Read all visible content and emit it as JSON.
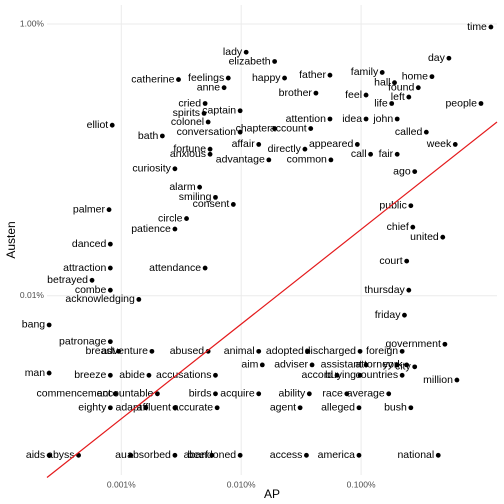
{
  "chart_data": {
    "type": "scatter",
    "x_label": "AP",
    "y_label": "Austen",
    "log_x": true,
    "log_y": true,
    "grid": true,
    "color": "#000000",
    "xlim": [
      0.00024,
      1.36
    ],
    "ylim": [
      0.00048,
      1.38
    ],
    "xticks": [
      {
        "value": 0.001,
        "label": "0.001%"
      },
      {
        "value": 0.01,
        "label": "0.010%"
      },
      {
        "value": 0.1,
        "label": "0.100%"
      }
    ],
    "yticks": [
      {
        "value": 0.01,
        "label": "0.01%"
      },
      {
        "value": 1,
        "label": "1.00%"
      }
    ],
    "trend_line": {
      "color": "#e41a1c",
      "x": [
        0.00024,
        1.36
      ],
      "y": [
        0.00046,
        0.19
      ]
    },
    "labels": [
      "lady",
      "elizabeth",
      "catherine",
      "feelings",
      "happy",
      "father",
      "family",
      "hall",
      "home",
      "day",
      "time",
      "anne",
      "brother",
      "feel",
      "found",
      "left",
      "cried",
      "spirits",
      "colonel",
      "captain",
      "life",
      "people",
      "elliot",
      "attention",
      "idea",
      "john",
      "bath",
      "chapter",
      "account",
      "called",
      "conversation",
      "fortune",
      "affair",
      "directly",
      "appeared",
      "week",
      "anxious",
      "advantage",
      "common",
      "call",
      "fair",
      "curiosity",
      "ago",
      "alarm",
      "smiling",
      "consent",
      "circle",
      "palmer",
      "patience",
      "public",
      "chief",
      "united",
      "danced",
      "attraction",
      "attendance",
      "betrayed",
      "combe",
      "court",
      "thursday",
      "acknowledging",
      "friday",
      "bang",
      "government",
      "patronage",
      "breast",
      "adventure",
      "abused",
      "animal",
      "adopted",
      "discharged",
      "foreign",
      "aim",
      "adviser",
      "assistant",
      "attorney",
      "york",
      "man",
      "breeze",
      "abide",
      "accusations",
      "accord",
      "buying",
      "countries",
      "city",
      "commencement",
      "accountable",
      "birds",
      "acquire",
      "ability",
      "race",
      "average",
      "million",
      "eighty",
      "adapt",
      "affluent",
      "accurate",
      "agent",
      "alleged",
      "bush",
      "aids",
      "abyss",
      "au",
      "absorbed",
      "beef",
      "abandoned",
      "access",
      "america",
      "national"
    ],
    "x": [
      0.011,
      0.019,
      0.003,
      0.0078,
      0.023,
      0.055,
      0.15,
      0.19,
      0.39,
      0.54,
      1.21,
      0.0072,
      0.042,
      0.11,
      0.3,
      0.25,
      0.005,
      0.0049,
      0.0053,
      0.0098,
      0.18,
      1.0,
      0.00084,
      0.055,
      0.11,
      0.2,
      0.0022,
      0.019,
      0.038,
      0.35,
      0.0098,
      0.0055,
      0.014,
      0.034,
      0.093,
      0.61,
      0.0055,
      0.017,
      0.056,
      0.12,
      0.2,
      0.0028,
      0.28,
      0.0045,
      0.0061,
      0.0086,
      0.0035,
      0.00079,
      0.0028,
      0.26,
      0.27,
      0.48,
      0.00081,
      0.00081,
      0.005,
      0.00057,
      0.00081,
      0.24,
      0.25,
      0.0014,
      0.23,
      0.00025,
      0.5,
      0.00081,
      0.00095,
      0.0018,
      0.0053,
      0.014,
      0.036,
      0.098,
      0.22,
      0.015,
      0.039,
      0.11,
      0.2,
      0.24,
      0.00025,
      0.00081,
      0.0017,
      0.0061,
      0.063,
      0.098,
      0.22,
      0.28,
      0.00089,
      0.002,
      0.0061,
      0.014,
      0.037,
      0.076,
      0.17,
      0.63,
      0.00081,
      0.0016,
      0.0028,
      0.0063,
      0.031,
      0.096,
      0.26,
      0.00025,
      0.00044,
      0.0012,
      0.0028,
      0.0057,
      0.0098,
      0.035,
      0.096,
      0.44
    ],
    "y": [
      0.62,
      0.53,
      0.39,
      0.4,
      0.4,
      0.42,
      0.44,
      0.37,
      0.41,
      0.56,
      0.95,
      0.34,
      0.31,
      0.3,
      0.34,
      0.29,
      0.26,
      0.22,
      0.19,
      0.23,
      0.26,
      0.26,
      0.18,
      0.2,
      0.2,
      0.2,
      0.15,
      0.17,
      0.17,
      0.16,
      0.16,
      0.12,
      0.13,
      0.12,
      0.13,
      0.13,
      0.11,
      0.1,
      0.1,
      0.11,
      0.11,
      0.086,
      0.082,
      0.063,
      0.053,
      0.047,
      0.037,
      0.043,
      0.031,
      0.046,
      0.032,
      0.027,
      0.024,
      0.016,
      0.016,
      0.013,
      0.011,
      0.018,
      0.011,
      0.0094,
      0.0072,
      0.0061,
      0.0044,
      0.0046,
      0.0039,
      0.0039,
      0.0039,
      0.0039,
      0.0039,
      0.0039,
      0.0039,
      0.0031,
      0.0031,
      0.0031,
      0.0031,
      0.0031,
      0.0027,
      0.0026,
      0.0026,
      0.0026,
      0.0026,
      0.0026,
      0.0026,
      0.003,
      0.0019,
      0.0019,
      0.0019,
      0.0019,
      0.0019,
      0.0019,
      0.0019,
      0.0024,
      0.0015,
      0.0015,
      0.0015,
      0.0015,
      0.0015,
      0.0015,
      0.0015,
      0.00067,
      0.00067,
      0.00067,
      0.00067,
      0.00067,
      0.00067,
      0.00067,
      0.00067,
      0.00067
    ]
  }
}
